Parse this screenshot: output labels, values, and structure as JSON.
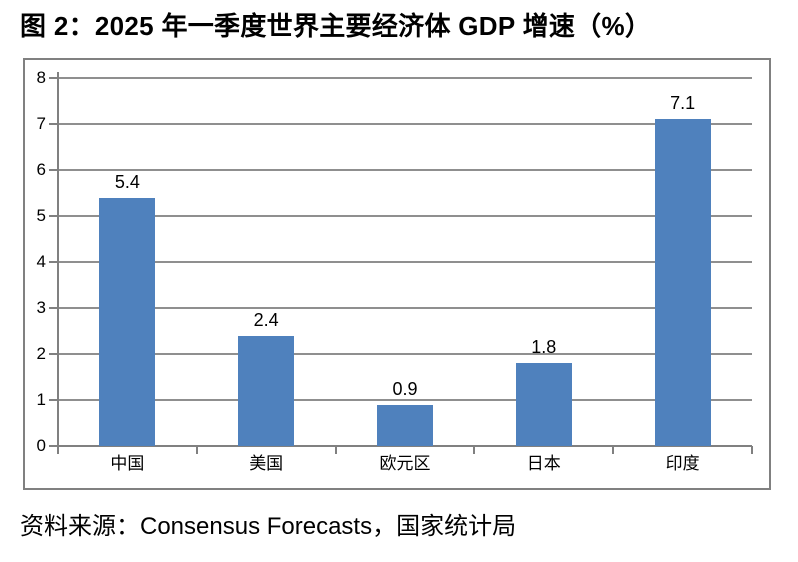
{
  "figure": {
    "title": "图 2：2025 年一季度世界主要经济体 GDP 增速（%）",
    "source": "资料来源：Consensus Forecasts，国家统计局"
  },
  "chart_data": {
    "type": "bar",
    "title": "2025 年一季度世界主要经济体 GDP 增速（%）",
    "categories": [
      "中国",
      "美国",
      "欧元区",
      "日本",
      "印度"
    ],
    "values": [
      5.4,
      2.4,
      0.9,
      1.8,
      7.1
    ],
    "data_labels": [
      "5.4",
      "2.4",
      "0.9",
      "1.8",
      "7.1"
    ],
    "xlabel": "",
    "ylabel": "",
    "ylim": [
      0,
      8
    ],
    "yticks": [
      0,
      1,
      2,
      3,
      4,
      5,
      6,
      7,
      8
    ],
    "grid": true,
    "legend": "none",
    "bar_color": "#4F81BD",
    "gridline_color": "#8F8F8F",
    "axis_color": "#808080",
    "frame_border_color": "#808080",
    "text_color": "#000000"
  }
}
